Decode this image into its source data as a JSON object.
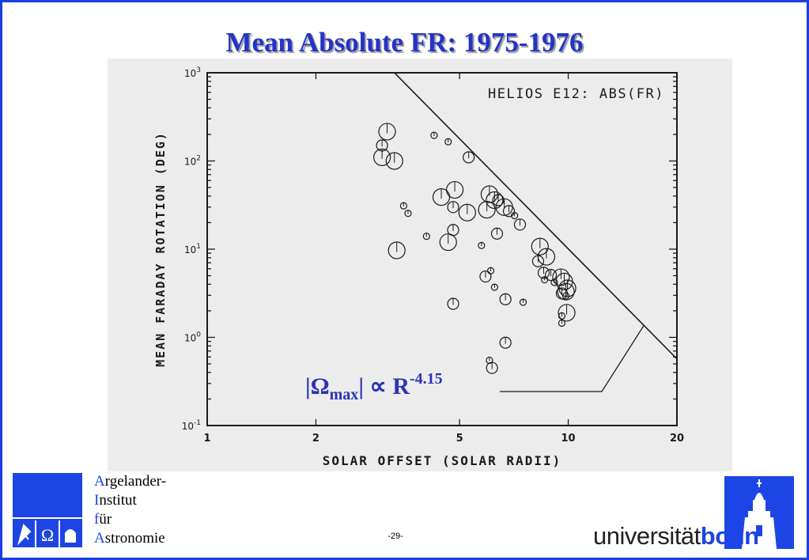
{
  "slide": {
    "title": "Mean Absolute FR: 1975-1976",
    "page_number": "-29-",
    "formula": {
      "open": "|",
      "symbol": "Ω",
      "sub": "max",
      "close": "| ∝ R",
      "sup": "-4.15"
    }
  },
  "institute": {
    "lines": [
      {
        "initial": "A",
        "rest": "rgelander-"
      },
      {
        "initial": "I",
        "rest": "nstitut"
      },
      {
        "initial": "f",
        "rest": "ür"
      },
      {
        "initial": "A",
        "rest": "stronomie"
      }
    ],
    "logo_glyph": "Ω"
  },
  "university": {
    "part1": "universität",
    "part2": "bonn"
  },
  "colors": {
    "title": "#2434c8",
    "accent": "#1d45e6",
    "frame": "#1a3ee0",
    "plot_bg": "#ececec",
    "ink": "#1a1a1a"
  },
  "chart_data": {
    "type": "scatter",
    "annotation": "HELIOS E12: ABS(FR)",
    "xlabel": "SOLAR OFFSET (SOLAR RADII)",
    "ylabel": "MEAN FARADAY ROTATION (DEG)",
    "x_scale": "log",
    "y_scale": "log",
    "xlim": [
      1,
      20
    ],
    "ylim": [
      0.1,
      1000
    ],
    "x_ticks": [
      {
        "v": 1,
        "label": "1"
      },
      {
        "v": 2,
        "label": "2"
      },
      {
        "v": 5,
        "label": "5"
      },
      {
        "v": 10,
        "label": "10"
      },
      {
        "v": 20,
        "label": "20"
      }
    ],
    "y_ticks": [
      {
        "v": 1000,
        "base": "10",
        "exp": "3"
      },
      {
        "v": 100,
        "base": "10",
        "exp": "2"
      },
      {
        "v": 10,
        "base": "10",
        "exp": "1"
      },
      {
        "v": 1,
        "base": "10",
        "exp": "0"
      },
      {
        "v": 0.1,
        "base": "10",
        "exp": "-1"
      }
    ],
    "fit_line": {
      "label": "|Ωmax| ∝ R^-4.15",
      "points": [
        [
          3.3,
          1000
        ],
        [
          20,
          0.57
        ]
      ]
    },
    "marker_size_levels": [
      "small",
      "medium",
      "large"
    ],
    "points": [
      [
        3.15,
        215,
        "large"
      ],
      [
        3.05,
        150,
        "medium"
      ],
      [
        3.05,
        110,
        "large"
      ],
      [
        3.3,
        100,
        "large"
      ],
      [
        4.25,
        195,
        "small"
      ],
      [
        4.65,
        165,
        "small"
      ],
      [
        5.3,
        110,
        "medium"
      ],
      [
        3.5,
        31,
        "small"
      ],
      [
        3.6,
        25.5,
        "small"
      ],
      [
        4.05,
        14,
        "small"
      ],
      [
        4.45,
        39,
        "large"
      ],
      [
        4.85,
        47,
        "large"
      ],
      [
        4.8,
        30,
        "medium"
      ],
      [
        5.25,
        26,
        "large"
      ],
      [
        6.05,
        42,
        "large"
      ],
      [
        5.95,
        28,
        "large"
      ],
      [
        6.25,
        36,
        "large"
      ],
      [
        6.4,
        36,
        "medium"
      ],
      [
        6.65,
        30,
        "large"
      ],
      [
        6.85,
        27,
        "medium"
      ],
      [
        7.1,
        24,
        "small"
      ],
      [
        7.35,
        19,
        "medium"
      ],
      [
        4.8,
        16.5,
        "medium"
      ],
      [
        4.65,
        12,
        "large"
      ],
      [
        5.75,
        11,
        "small"
      ],
      [
        6.35,
        15,
        "medium"
      ],
      [
        3.35,
        9.7,
        "large"
      ],
      [
        5.9,
        4.9,
        "medium"
      ],
      [
        6.1,
        5.7,
        "small"
      ],
      [
        6.25,
        3.7,
        "small"
      ],
      [
        6.7,
        2.7,
        "medium"
      ],
      [
        7.5,
        2.5,
        "small"
      ],
      [
        4.8,
        2.4,
        "medium"
      ],
      [
        6.7,
        0.87,
        "medium"
      ],
      [
        6.05,
        0.55,
        "small"
      ],
      [
        6.15,
        0.45,
        "medium"
      ],
      [
        8.35,
        10.7,
        "large"
      ],
      [
        8.7,
        8.2,
        "large"
      ],
      [
        8.25,
        7.3,
        "medium"
      ],
      [
        8.55,
        5.4,
        "medium"
      ],
      [
        8.95,
        5.1,
        "medium"
      ],
      [
        8.6,
        4.5,
        "small"
      ],
      [
        9.15,
        4.2,
        "small"
      ],
      [
        9.55,
        4.8,
        "large"
      ],
      [
        9.75,
        4.3,
        "large"
      ],
      [
        9.95,
        3.6,
        "large"
      ],
      [
        9.6,
        3.15,
        "medium"
      ],
      [
        9.85,
        2.95,
        "small"
      ],
      [
        9.9,
        1.9,
        "large"
      ],
      [
        9.6,
        1.75,
        "small"
      ],
      [
        9.6,
        1.45,
        "small"
      ],
      [
        9.85,
        3.3,
        "large"
      ]
    ]
  }
}
